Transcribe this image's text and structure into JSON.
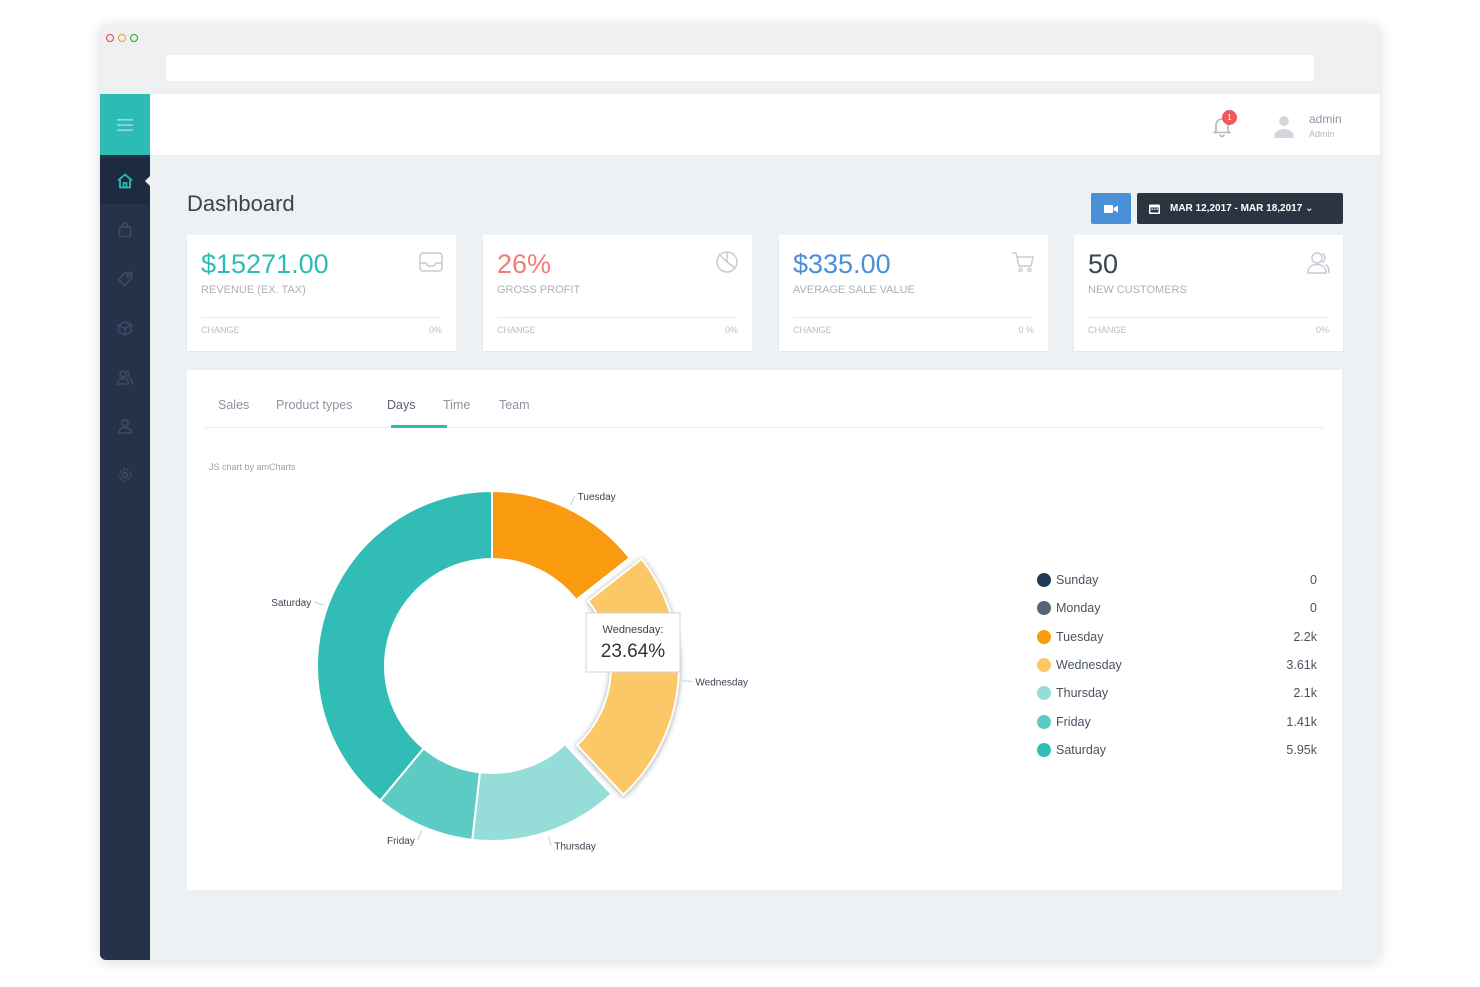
{
  "header": {
    "user_name": "admin",
    "user_role": "Admin",
    "notification_count": "1"
  },
  "page": {
    "title": "Dashboard",
    "date_range": "MAR 12,2017 - MAR 18,2017 ⌄"
  },
  "kpis": [
    {
      "value": "$15271.00",
      "label": "REVENUE (EX. TAX)",
      "change_label": "CHANGE",
      "change_value": "0%",
      "color": "#2dbcb5",
      "icon": "inbox-icon"
    },
    {
      "value": "26%",
      "label": "GROSS PROFIT",
      "change_label": "CHANGE",
      "change_value": "0%",
      "color": "#f27d72",
      "icon": "pie-chart-icon"
    },
    {
      "value": "$335.00",
      "label": "AVERAGE SALE VALUE",
      "change_label": "CHANGE",
      "change_value": "0 %",
      "color": "#4a90d9",
      "icon": "cart-icon"
    },
    {
      "value": "50",
      "label": "NEW CUSTOMERS",
      "change_label": "CHANGE",
      "change_value": "0%",
      "color": "#3b4250",
      "icon": "users-icon"
    }
  ],
  "tabs": [
    "Sales",
    "Product types",
    "Days",
    "Time",
    "Team"
  ],
  "active_tab": "Days",
  "chart_credit": "JS chart by amCharts",
  "tooltip": {
    "title": "Wednesday:",
    "value": "23.64%"
  },
  "chart_data": {
    "type": "pie",
    "donut": true,
    "categories": [
      "Sunday",
      "Monday",
      "Tuesday",
      "Wednesday",
      "Thursday",
      "Friday",
      "Saturday"
    ],
    "values": [
      0,
      0,
      2200,
      3610,
      2100,
      1410,
      5950
    ],
    "value_labels": [
      "0",
      "0",
      "2.2k",
      "3.61k",
      "2.1k",
      "1.41k",
      "5.95k"
    ],
    "colors": [
      "#1f3a57",
      "#56657a",
      "#f99a0f",
      "#fcc766",
      "#96dcd8",
      "#5ccbc4",
      "#31bdb6"
    ],
    "highlighted": "Wednesday",
    "legend_position": "right"
  }
}
